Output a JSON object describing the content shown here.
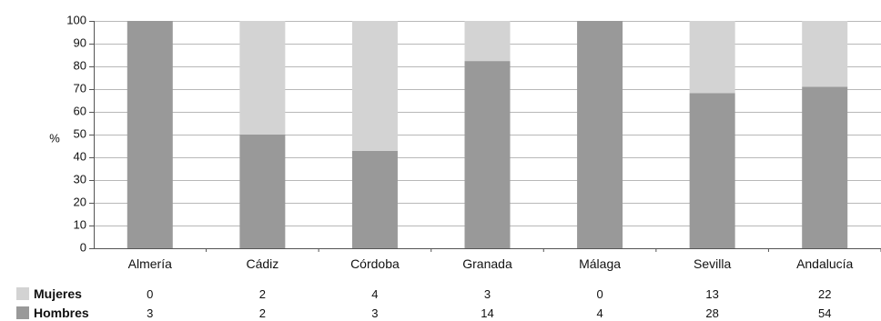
{
  "chart_data": {
    "type": "bar",
    "stacked": "percent",
    "ylabel": "%",
    "ylim": [
      0,
      100
    ],
    "yticks": [
      0,
      10,
      20,
      30,
      40,
      50,
      60,
      70,
      80,
      90,
      100
    ],
    "grid": true,
    "legend": "table-below",
    "categories": [
      "Almería",
      "Cádiz",
      "Córdoba",
      "Granada",
      "Málaga",
      "Sevilla",
      "Andalucía"
    ],
    "series": [
      {
        "name": "Hombres",
        "color": "#999999",
        "values": [
          3,
          2,
          3,
          14,
          4,
          28,
          54
        ]
      },
      {
        "name": "Mujeres",
        "color": "#d3d3d3",
        "values": [
          0,
          2,
          4,
          3,
          0,
          13,
          22
        ]
      }
    ]
  }
}
